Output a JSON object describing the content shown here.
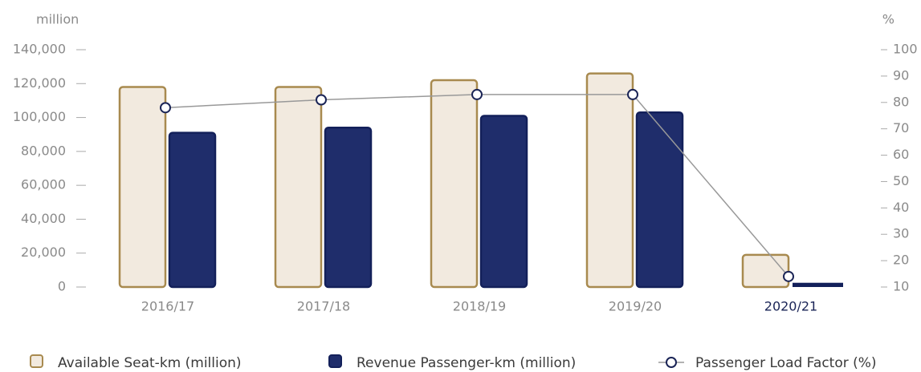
{
  "chart_data": {
    "type": "bar_line",
    "y_label": "million",
    "y2_label": "%",
    "categories": [
      "2016/17",
      "2017/18",
      "2018/19",
      "2019/20",
      "2020/21"
    ],
    "series": [
      {
        "name": "Available Seat-km (million)",
        "type": "bar",
        "color": "#f2eadf",
        "edge": "#a88a4f",
        "values": [
          118000,
          118000,
          122000,
          126000,
          19000
        ]
      },
      {
        "name": "Revenue Passenger-km (million)",
        "type": "bar",
        "color": "#1f2d6b",
        "edge": "#13205a",
        "values": [
          91000,
          94000,
          101000,
          103000,
          2500
        ]
      },
      {
        "name": "Passenger Load Factor (%)",
        "type": "line",
        "axis": "y2",
        "color": "#999999",
        "values": [
          78,
          81,
          83,
          83,
          14
        ]
      }
    ],
    "ylim": [
      0,
      140000
    ],
    "yticks": [
      0,
      {
        "value": 20000,
        "label": "20,000"
      },
      {
        "value": 40000,
        "label": "40,000"
      },
      {
        "value": 60000,
        "label": "60,000"
      },
      {
        "value": 80000,
        "label": "80,000"
      },
      {
        "value": 100000,
        "label": "100,000"
      },
      {
        "value": 120000,
        "label": "120,000"
      },
      {
        "value": 140000,
        "label": "140,000"
      }
    ],
    "y2lim": [
      10,
      100
    ],
    "y2ticks": [
      10,
      20,
      30,
      40,
      50,
      60,
      70,
      80,
      90,
      100
    ]
  }
}
